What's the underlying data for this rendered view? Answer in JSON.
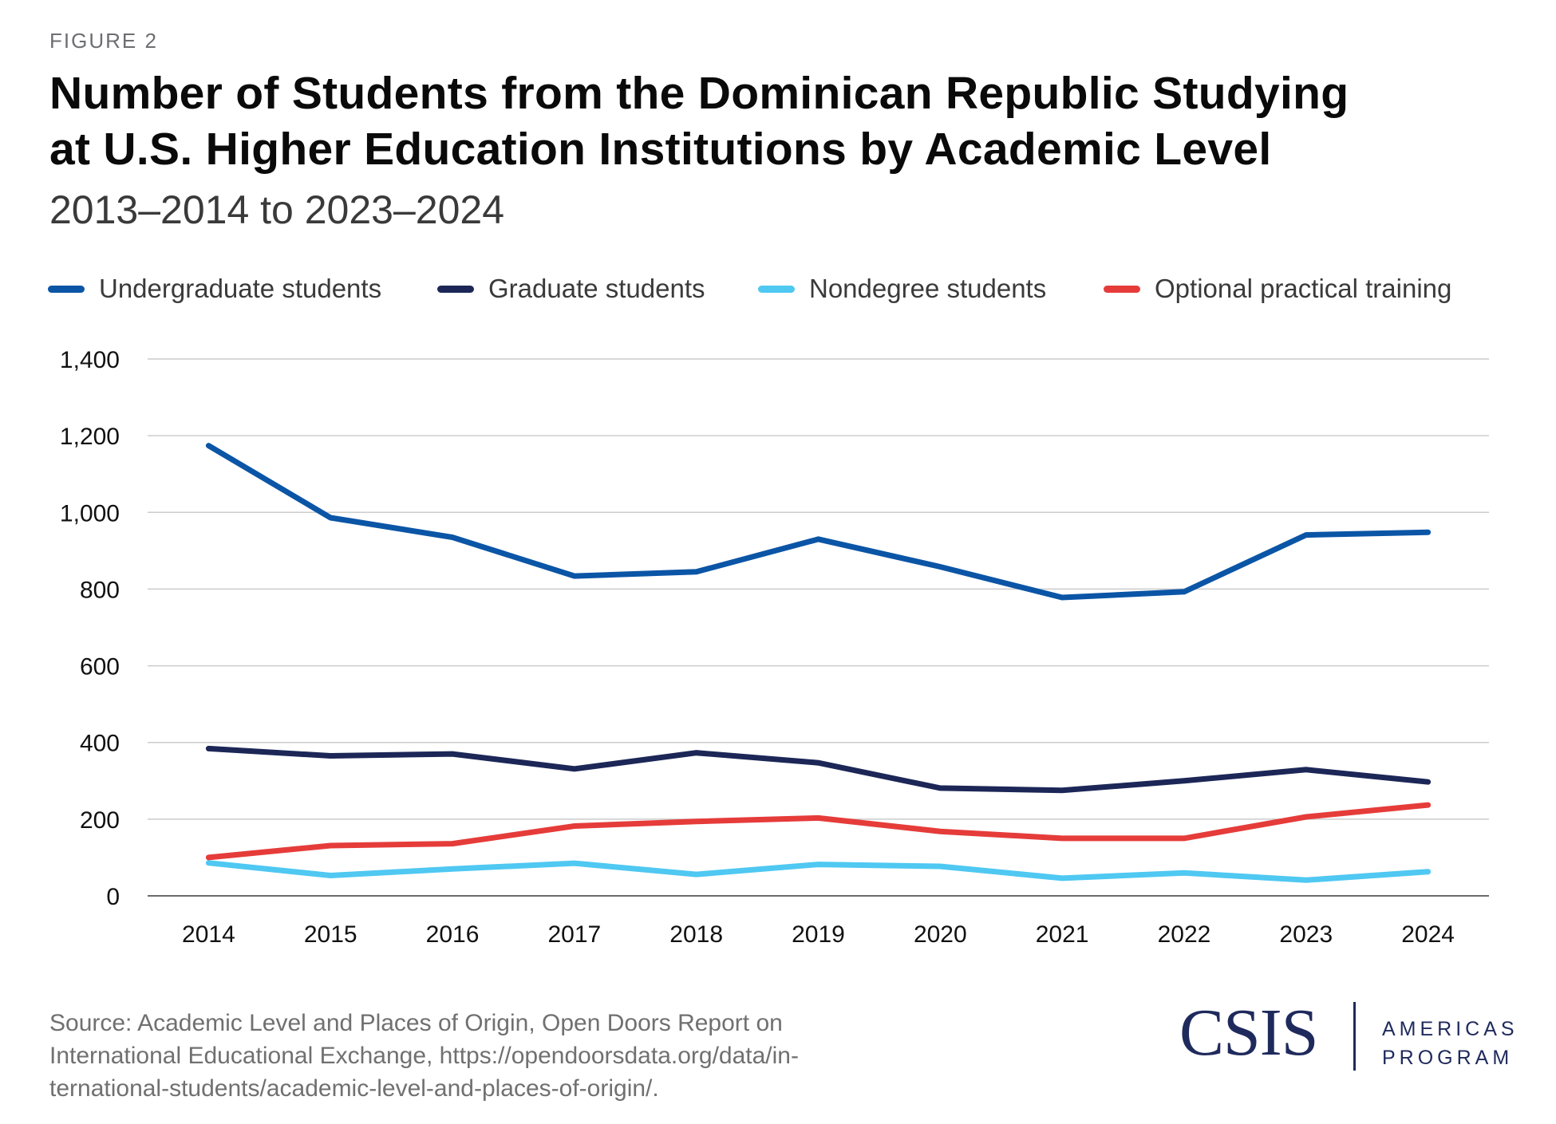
{
  "header": {
    "figure_label": "FIGURE 2",
    "title_lines": [
      "Number of Students from the Dominican Republic Studying",
      "at U.S. Higher Education Institutions by Academic Level"
    ],
    "subtitle": "2013–2014 to 2023–2024"
  },
  "legend": [
    {
      "label": "Undergraduate students",
      "color": "#0b55a6"
    },
    {
      "label": "Graduate students",
      "color": "#1c2757"
    },
    {
      "label": "Nondegree students",
      "color": "#4fc8f2"
    },
    {
      "label": "Optional practical training",
      "color": "#e53c3a"
    }
  ],
  "chart_data": {
    "type": "line",
    "title": "Number of Students from the Dominican Republic Studying at U.S. Higher Education Institutions by Academic Level",
    "subtitle": "2013–2014 to 2023–2024",
    "xlabel": "",
    "ylabel": "",
    "categories": [
      "2014",
      "2015",
      "2016",
      "2017",
      "2018",
      "2019",
      "2020",
      "2021",
      "2022",
      "2023",
      "2024"
    ],
    "ylim": [
      0,
      1400
    ],
    "yticks": [
      0,
      200,
      400,
      600,
      800,
      1000,
      1200,
      1400
    ],
    "ytick_labels": [
      "0",
      "200",
      "400",
      "600",
      "800",
      "1,000",
      "1,200",
      "1,400"
    ],
    "grid": true,
    "legend_position": "top",
    "series": [
      {
        "name": "Undergraduate students",
        "color": "#0b55a6",
        "values": [
          1174,
          986,
          935,
          834,
          845,
          930,
          858,
          778,
          793,
          941,
          948
        ]
      },
      {
        "name": "Graduate students",
        "color": "#1c2757",
        "values": [
          384,
          365,
          370,
          331,
          373,
          347,
          281,
          275,
          300,
          329,
          297
        ]
      },
      {
        "name": "Nondegree students",
        "color": "#4fc8f2",
        "values": [
          86,
          53,
          70,
          85,
          56,
          82,
          77,
          46,
          60,
          41,
          63
        ]
      },
      {
        "name": "Optional practical training",
        "color": "#e53c3a",
        "values": [
          100,
          131,
          136,
          182,
          194,
          203,
          168,
          150,
          150,
          206,
          237
        ]
      }
    ]
  },
  "footer": {
    "source": "Source: Academic Level and Places of Origin, Open Doors Report on International Educational Exchange, https://opendoorsdata.org/data/in­ternational-students/academic-level-and-places-of-origin/.",
    "source_lines": [
      "Source: Academic Level and Places of Origin, Open Doors Report on",
      "International Educational Exchange, https://opendoorsdata.org/data/in-",
      "ternational-students/academic-level-and-places-of-origin/."
    ],
    "logo": {
      "name": "CSIS",
      "program_lines": [
        "AMERICAS",
        "PROGRAM"
      ],
      "color": "#1f2a5c"
    }
  }
}
